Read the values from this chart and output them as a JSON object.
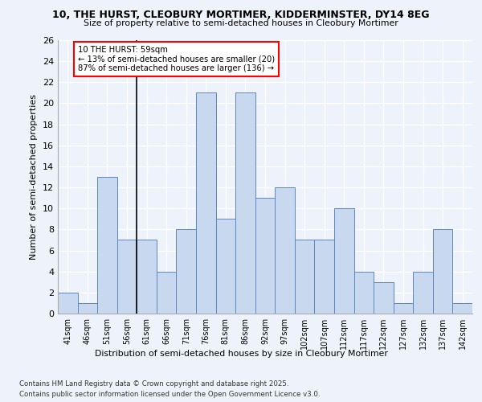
{
  "title": "10, THE HURST, CLEOBURY MORTIMER, KIDDERMINSTER, DY14 8EG",
  "subtitle": "Size of property relative to semi-detached houses in Cleobury Mortimer",
  "xlabel": "Distribution of semi-detached houses by size in Cleobury Mortimer",
  "ylabel": "Number of semi-detached properties",
  "categories": [
    "41sqm",
    "46sqm",
    "51sqm",
    "56sqm",
    "61sqm",
    "66sqm",
    "71sqm",
    "76sqm",
    "81sqm",
    "86sqm",
    "92sqm",
    "97sqm",
    "102sqm",
    "107sqm",
    "112sqm",
    "117sqm",
    "122sqm",
    "127sqm",
    "132sqm",
    "137sqm",
    "142sqm"
  ],
  "values": [
    2,
    1,
    13,
    7,
    7,
    4,
    8,
    21,
    9,
    21,
    11,
    12,
    7,
    7,
    10,
    4,
    3,
    1,
    4,
    8,
    1
  ],
  "bar_color": "#c8d9ef",
  "bar_edgecolor": "#5b87c5",
  "annotation_text": "10 THE HURST: 59sqm\n← 13% of semi-detached houses are smaller (20)\n87% of semi-detached houses are larger (136) →",
  "vline_pos": 3.5,
  "ylim": [
    0,
    26
  ],
  "yticks": [
    0,
    2,
    4,
    6,
    8,
    10,
    12,
    14,
    16,
    18,
    20,
    22,
    24,
    26
  ],
  "background_color": "#eef2fb",
  "plot_bg_color": "#eef2fb",
  "grid_color": "#ffffff",
  "footer_line1": "Contains HM Land Registry data © Crown copyright and database right 2025.",
  "footer_line2": "Contains public sector information licensed under the Open Government Licence v3.0."
}
